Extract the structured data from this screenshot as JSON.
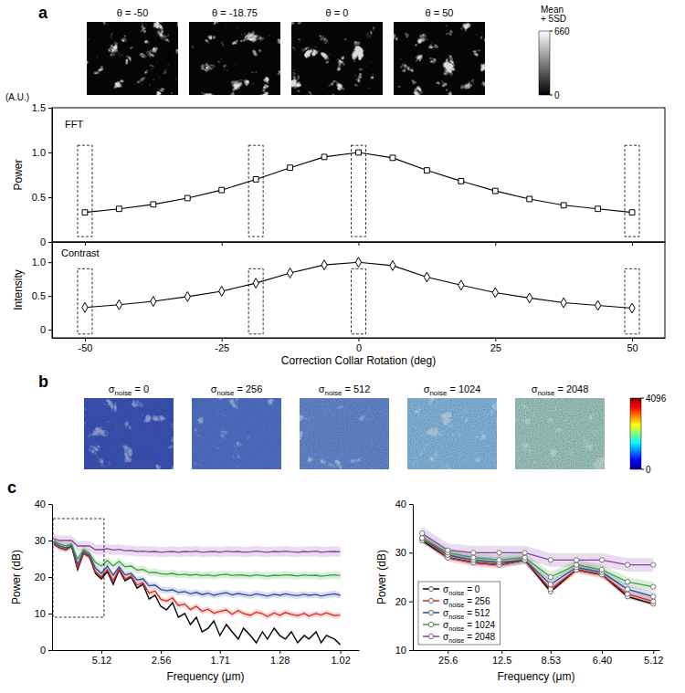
{
  "chart_data": [
    {
      "type": "image",
      "panel": "a",
      "images": [
        {
          "title": "θ = -50",
          "color": "#050505"
        },
        {
          "title": "θ = -18.75",
          "color": "#050505"
        },
        {
          "title": "θ = 0",
          "color": "#050505"
        },
        {
          "title": "θ = 50",
          "color": "#050505"
        }
      ],
      "colorbar": {
        "title": "Mean + 5SD",
        "lim": [
          0,
          660
        ],
        "ticks": [
          0,
          660
        ],
        "colors": [
          "#000000",
          "#ffffff"
        ]
      }
    },
    {
      "type": "line",
      "title": "FFT",
      "ylabel": "Power",
      "annotation": "(A.U.)",
      "marker": "square",
      "color": "#000000",
      "tick_labels": "y",
      "x": [
        -50,
        -43.75,
        -37.5,
        -31.25,
        -25,
        -18.75,
        -12.5,
        -6.25,
        0,
        6.25,
        12.5,
        18.75,
        25,
        31.25,
        37.5,
        43.75,
        50
      ],
      "values": [
        0.33,
        0.37,
        0.42,
        0.49,
        0.58,
        0.7,
        0.83,
        0.95,
        1.0,
        0.94,
        0.8,
        0.68,
        0.57,
        0.48,
        0.41,
        0.37,
        0.33
      ],
      "xlim": [
        -56,
        56
      ],
      "xticks": [
        -50,
        -25,
        0,
        25,
        50
      ],
      "ylim": [
        0,
        1.5
      ],
      "yticks": [
        0,
        0.5,
        {
          "value": 1,
          "label": "1.0"
        },
        1.5
      ],
      "highlights": [
        -50,
        -18.75,
        0,
        50
      ]
    },
    {
      "type": "line",
      "title": "Contrast",
      "ylabel": "Intensity",
      "xlabel": "Correction Collar Rotation (deg)",
      "marker": "diamond",
      "color": "#000000",
      "x": [
        -50,
        -43.75,
        -37.5,
        -31.25,
        -25,
        -18.75,
        -12.5,
        -6.25,
        0,
        6.25,
        12.5,
        18.75,
        25,
        31.25,
        37.5,
        43.75,
        50
      ],
      "values": [
        0.33,
        0.37,
        0.42,
        0.49,
        0.57,
        0.69,
        0.84,
        0.96,
        1.0,
        0.95,
        0.78,
        0.66,
        0.55,
        0.47,
        0.4,
        0.36,
        0.32
      ],
      "xlim": [
        -56,
        56
      ],
      "xticks": [
        -50,
        -25,
        0,
        25,
        50
      ],
      "ylim": [
        -0.12,
        1.3
      ],
      "yticks": [
        0,
        0.5,
        {
          "value": 1,
          "label": "1.0"
        }
      ],
      "highlights": [
        -50,
        -18.75,
        0,
        50
      ]
    },
    {
      "type": "image",
      "panel": "b",
      "images": [
        {
          "title": "σnoise = 0",
          "color": "#2a44a6"
        },
        {
          "title": "σnoise = 256",
          "color": "#2f55b3"
        },
        {
          "title": "σnoise = 512",
          "color": "#3564bd"
        },
        {
          "title": "σnoise = 1024",
          "color": "#4e9ad6"
        },
        {
          "title": "σnoise = 2048",
          "color": "#62b2a0"
        }
      ],
      "colorbar": {
        "lim": [
          0,
          4096
        ],
        "ticks": [
          0,
          4096
        ],
        "colors": [
          "#00007f",
          "#0000ff",
          "#007fff",
          "#00ffff",
          "#7fff7f",
          "#ffff00",
          "#ff7f00",
          "#ff0000",
          "#7f0000"
        ]
      }
    },
    {
      "type": "line",
      "panel": "c",
      "xlabel": "Frequency (μm)",
      "ylabel": "Power (dB)",
      "x": [
        25.6,
        17.07,
        12.8,
        10.24,
        8.53,
        7.31,
        6.4,
        5.69,
        5.12,
        4.65,
        4.27,
        3.94,
        3.66,
        3.41,
        3.2,
        3.01,
        2.84,
        2.69,
        2.56,
        2.44,
        2.33,
        2.23,
        2.13,
        2.05,
        1.97,
        1.9,
        1.83,
        1.77,
        1.71,
        1.65,
        1.6,
        1.55,
        1.51,
        1.46,
        1.42,
        1.38,
        1.35,
        1.31,
        1.28,
        1.25,
        1.22,
        1.19,
        1.16,
        1.14,
        1.11,
        1.09,
        1.07,
        1.04,
        1.02
      ],
      "series": [
        {
          "color": "#000000",
          "error": 0.4,
          "values": [
            29,
            28,
            27.5,
            28.5,
            22,
            26.5,
            25.5,
            21,
            19.5,
            21.5,
            18,
            22,
            19,
            20,
            17,
            18,
            14,
            15,
            12,
            11,
            13,
            9,
            10,
            7,
            9,
            5,
            6,
            8,
            4,
            7,
            5,
            3,
            6,
            4,
            2,
            5,
            3,
            6,
            4,
            3,
            5,
            2,
            4,
            3,
            5,
            2,
            4,
            3,
            1.5
          ]
        },
        {
          "color": "#d7261e",
          "error": 0.8,
          "values": [
            29,
            28,
            27.5,
            28.5,
            22.5,
            26.5,
            25.5,
            21.5,
            20,
            22,
            19,
            22.2,
            19.5,
            20.3,
            17.8,
            18.4,
            15.6,
            16.2,
            13.9,
            13.4,
            14.3,
            12.2,
            12.6,
            11.1,
            12.0,
            10.6,
            11.2,
            10.1,
            10.6,
            11.0,
            9.8,
            10.8,
            10.0,
            9.5,
            10.4,
            10.0,
            9.2,
            10.2,
            9.5,
            10.3,
            9.8,
            9.4,
            10.1,
            9.3,
            10.0,
            9.6,
            10.2,
            9.4,
            9.6
          ]
        },
        {
          "color": "#2b4c9e",
          "error": 0.9,
          "values": [
            29.5,
            28.5,
            28,
            28.5,
            23.5,
            27,
            26,
            22.5,
            21,
            23,
            20.5,
            22.8,
            20.6,
            21.0,
            19.2,
            19.5,
            17.6,
            17.8,
            16.6,
            16.3,
            16.5,
            15.8,
            16.0,
            15.4,
            15.8,
            15.2,
            15.6,
            15.0,
            15.4,
            15.7,
            15.1,
            15.5,
            15.2,
            14.9,
            15.4,
            15.1,
            14.8,
            15.3,
            15.0,
            15.4,
            15.1,
            14.9,
            15.3,
            15.0,
            15.2,
            14.8,
            15.1,
            15.4,
            15.0
          ]
        },
        {
          "color": "#3a9d3a",
          "error": 1.0,
          "values": [
            30,
            29,
            28.5,
            29,
            25,
            27.5,
            26.5,
            24,
            23,
            24.5,
            23.0,
            24.3,
            22.8,
            23.0,
            21.9,
            22.1,
            21.2,
            21.3,
            20.9,
            20.8,
            21.0,
            20.6,
            20.8,
            20.5,
            20.7,
            20.4,
            20.6,
            20.3,
            20.6,
            20.8,
            20.4,
            20.6,
            20.5,
            20.3,
            20.6,
            20.4,
            20.2,
            20.5,
            20.4,
            20.6,
            20.5,
            20.3,
            20.6,
            20.4,
            20.5,
            20.2,
            20.4,
            20.6,
            20.4
          ]
        },
        {
          "color": "#8a3fa6",
          "error": 1.4,
          "values": [
            30.5,
            30,
            30,
            30,
            28.5,
            28.5,
            28.5,
            27.5,
            27.5,
            27.8,
            27.4,
            27.6,
            27.2,
            27.3,
            27.0,
            27.1,
            26.9,
            27.0,
            26.8,
            26.9,
            27.0,
            26.8,
            27.0,
            26.9,
            27.1,
            26.8,
            26.9,
            27.0,
            26.8,
            27.1,
            26.9,
            27.0,
            26.8,
            26.9,
            27.1,
            26.9,
            26.8,
            27.0,
            26.9,
            27.1,
            26.9,
            26.8,
            27.0,
            26.9,
            27.1,
            26.8,
            26.9,
            27.0,
            26.9
          ]
        }
      ],
      "xlim": [
        30,
        0.96
      ],
      "xticks": [
        5.12,
        2.56,
        1.71,
        1.28,
        1.02
      ],
      "ylim": [
        0,
        40
      ],
      "yticks": [
        0,
        10,
        20,
        30,
        40
      ],
      "zoom_box": {
        "x": [
          30,
          4.9
        ],
        "y": [
          9,
          36
        ]
      }
    },
    {
      "type": "line",
      "xlabel": "Frequency (μm)",
      "ylabel": "Power (dB)",
      "marker": "circle",
      "legend": "lower left",
      "x": [
        51.2,
        25.6,
        17.07,
        12.8,
        10.24,
        8.53,
        7.31,
        6.4,
        5.69,
        5.12
      ],
      "series": [
        {
          "name": "σnoise = 0",
          "color": "#000000",
          "error": 0.4,
          "values": [
            32.5,
            29,
            28,
            27.5,
            28.5,
            22,
            26.5,
            25.5,
            21,
            19.5
          ]
        },
        {
          "name": "σnoise = 256",
          "color": "#d7261e",
          "error": 0.8,
          "values": [
            33,
            29,
            28,
            27.5,
            28.5,
            22.5,
            26.5,
            25.5,
            21.5,
            20
          ]
        },
        {
          "name": "σnoise = 512",
          "color": "#2b4c9e",
          "error": 0.9,
          "values": [
            33,
            29.5,
            28.5,
            28,
            28.5,
            23.5,
            27,
            26,
            22.5,
            21
          ]
        },
        {
          "name": "σnoise = 1024",
          "color": "#3a9d3a",
          "error": 1.0,
          "values": [
            33,
            30,
            29,
            28.5,
            29,
            25,
            27.5,
            26.5,
            24,
            23
          ]
        },
        {
          "name": "σnoise = 2048",
          "color": "#8a3fa6",
          "error": 1.4,
          "values": [
            34,
            30.5,
            30,
            30,
            30,
            28.5,
            28.5,
            28.5,
            27.5,
            27.5
          ]
        }
      ],
      "xlim": [
        80,
        5.0
      ],
      "xticks": [
        25.6,
        12.5,
        8.53,
        {
          "value": 6.4,
          "label": "6.40"
        },
        5.12
      ],
      "ylim": [
        10,
        40
      ],
      "yticks": [
        10,
        20,
        30,
        40
      ]
    }
  ]
}
